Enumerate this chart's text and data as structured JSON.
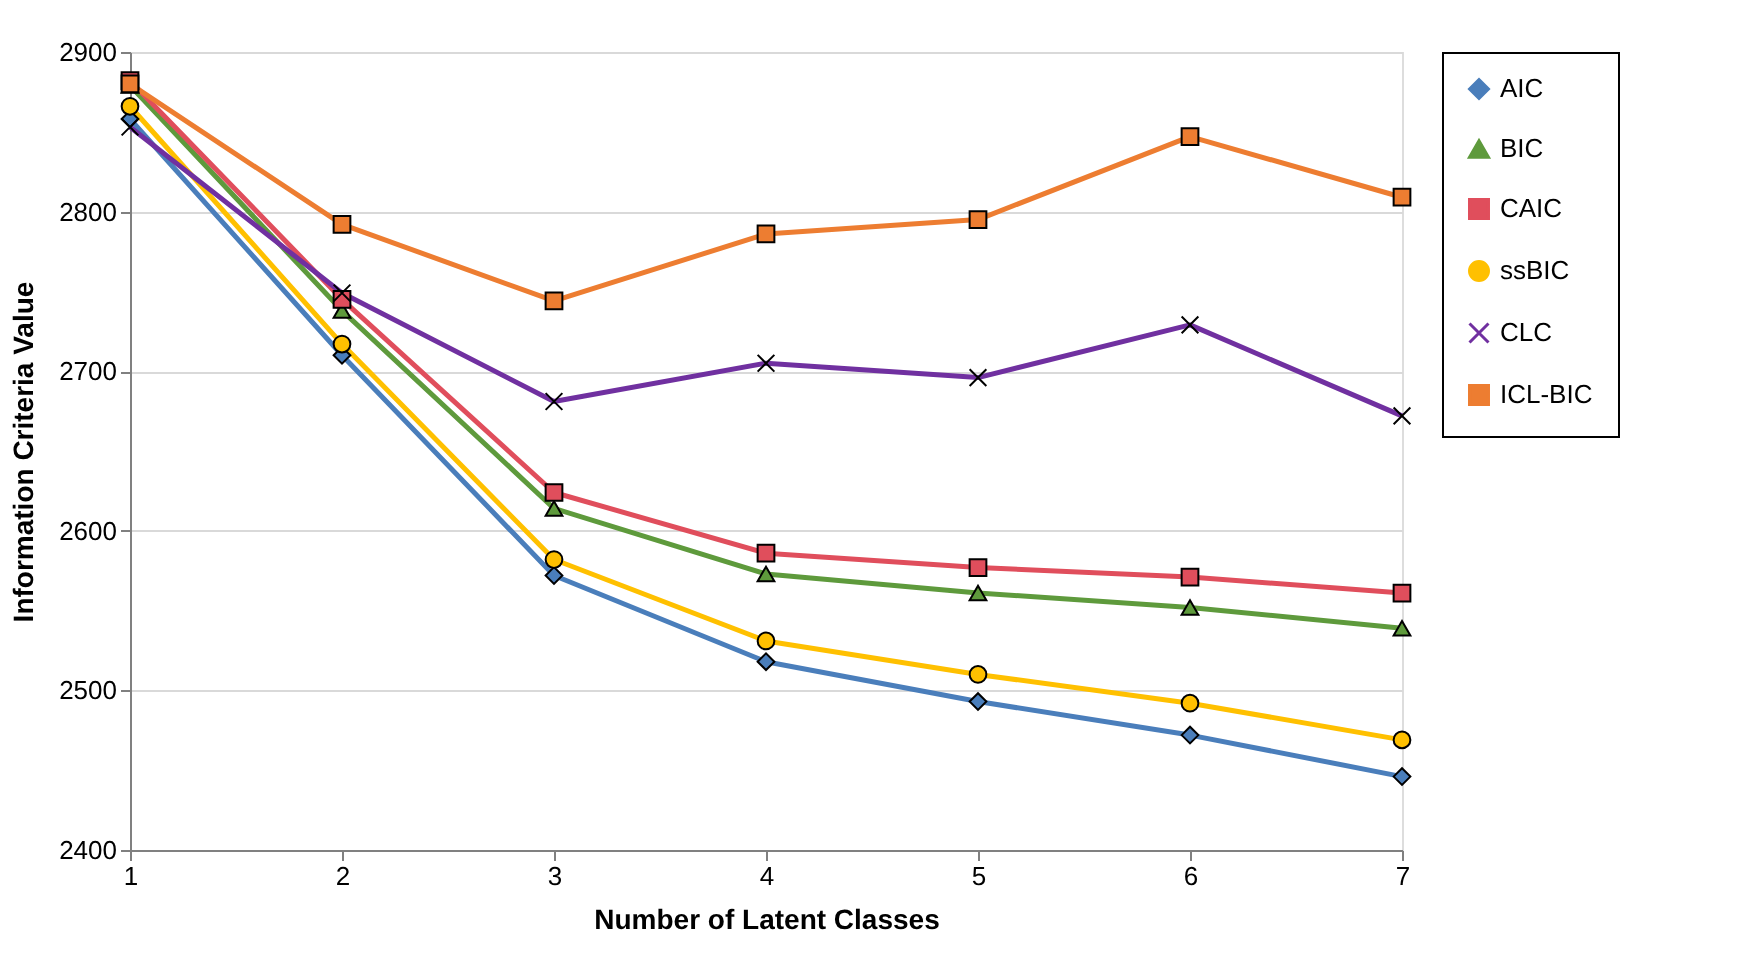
{
  "chart_data": {
    "type": "line",
    "xlabel": "Number of Latent Classes",
    "ylabel": "Information Criteria Value",
    "x": [
      1,
      2,
      3,
      4,
      5,
      6,
      7
    ],
    "xlim": [
      1,
      7
    ],
    "xticks": [
      1,
      2,
      3,
      4,
      5,
      6,
      7
    ],
    "ylim": [
      2400,
      2900
    ],
    "yticks": [
      2400,
      2500,
      2600,
      2700,
      2800,
      2900
    ],
    "grid": "y",
    "legend": "right",
    "line_style": "solid",
    "series": [
      {
        "name": "AIC",
        "color": "#4a7ebb",
        "marker": "diamond",
        "values": [
          2858,
          2710,
          2572,
          2518,
          2493,
          2472,
          2446
        ]
      },
      {
        "name": "BIC",
        "color": "#5e9a3c",
        "marker": "triangle",
        "values": [
          2879,
          2738,
          2614,
          2573,
          2561,
          2552,
          2539
        ]
      },
      {
        "name": "CAIC",
        "color": "#e04e5c",
        "marker": "square",
        "values": [
          2882,
          2745,
          2624,
          2586,
          2577,
          2571,
          2561
        ]
      },
      {
        "name": "ssBIC",
        "color": "#ffc000",
        "marker": "circle",
        "values": [
          2866,
          2717,
          2582,
          2531,
          2510,
          2492,
          2469
        ]
      },
      {
        "name": "CLC",
        "color": "#7030a0",
        "marker": "cross",
        "values": [
          2853,
          2749,
          2681,
          2705,
          2696,
          2729,
          2672
        ]
      },
      {
        "name": "ICL-BIC",
        "color": "#ed7d31",
        "marker": "square",
        "values": [
          2880,
          2792,
          2744,
          2786,
          2795,
          2847,
          2809
        ]
      }
    ]
  }
}
